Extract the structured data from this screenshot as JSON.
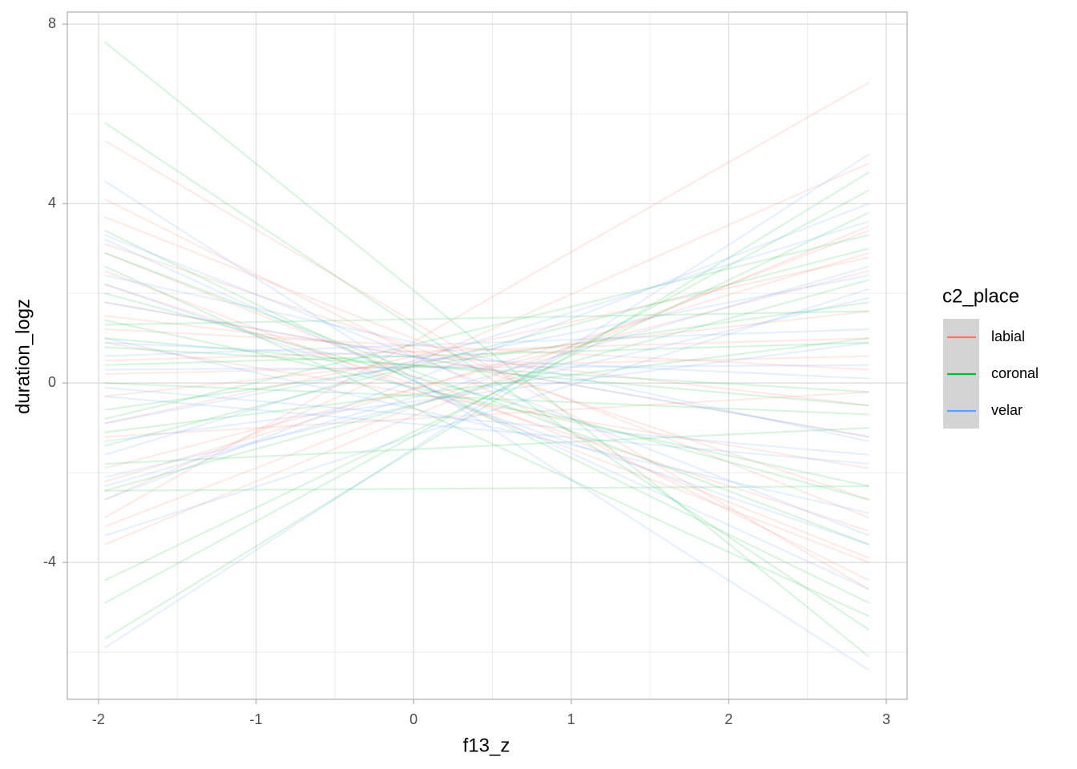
{
  "chart_data": {
    "type": "line",
    "x_label": "f13_z",
    "y_label": "duration_logz",
    "legend_title": "c2_place",
    "legend": "right",
    "xlim": [
      -2.198,
      3.132
    ],
    "ylim": [
      -7.05,
      8.27
    ],
    "xticks": [
      -2,
      -1,
      0,
      1,
      2,
      3
    ],
    "yticks": [
      -4,
      0,
      4,
      8
    ],
    "xminor": [
      -1.5,
      -0.5,
      0.5,
      1.5,
      2.5
    ],
    "yminor": [
      -6,
      -2,
      2,
      6
    ],
    "grid": true,
    "line_opacity": 0.15,
    "x": [
      -1.96,
      2.89
    ],
    "groups": [
      {
        "name": "labial",
        "color": "#F8766D",
        "lines": [
          [
            2.9,
            -3.9
          ],
          [
            4.1,
            -4.4
          ],
          [
            5.4,
            -4.6
          ],
          [
            -3.0,
            6.7
          ],
          [
            -3.6,
            3.5
          ],
          [
            1.8,
            -1.2
          ],
          [
            -0.9,
            2.8
          ],
          [
            3.1,
            -2.6
          ],
          [
            0.5,
            1.0
          ],
          [
            -1.9,
            2.5
          ],
          [
            2.2,
            -3.3
          ],
          [
            -2.6,
            4.9
          ],
          [
            1.2,
            0.3
          ],
          [
            -0.3,
            1.6
          ],
          [
            3.7,
            -3.0
          ],
          [
            -1.2,
            -0.2
          ],
          [
            0.9,
            -1.9
          ],
          [
            -2.2,
            2.9
          ],
          [
            2.5,
            -4.0
          ],
          [
            0.2,
            0.6
          ],
          [
            1.5,
            -0.5
          ],
          [
            -3.2,
            3.4
          ]
        ]
      },
      {
        "name": "coronal",
        "color": "#00BA38",
        "lines": [
          [
            7.6,
            -6.1
          ],
          [
            5.8,
            -5.5
          ],
          [
            -5.7,
            4.7
          ],
          [
            -4.9,
            4.3
          ],
          [
            -4.4,
            3.8
          ],
          [
            1.4,
            -2.3
          ],
          [
            -1.4,
            3.0
          ],
          [
            3.4,
            -4.9
          ],
          [
            0.4,
            0.9
          ],
          [
            -0.6,
            1.8
          ],
          [
            2.0,
            -2.6
          ],
          [
            -2.4,
            2.3
          ],
          [
            1.0,
            -0.5
          ],
          [
            -1.8,
            -1.0
          ],
          [
            2.6,
            -5.2
          ],
          [
            0.0,
            -0.7
          ],
          [
            -2.4,
            -2.3
          ],
          [
            1.3,
            1.6
          ],
          [
            -0.8,
            3.3
          ],
          [
            2.9,
            -3.6
          ],
          [
            0.8,
            -0.2
          ],
          [
            -1.1,
            1.0
          ]
        ]
      },
      {
        "name": "velar",
        "color": "#619CFF",
        "lines": [
          [
            4.5,
            -6.4
          ],
          [
            -5.9,
            5.1
          ],
          [
            3.3,
            -3.4
          ],
          [
            -2.3,
            2.6
          ],
          [
            -1.6,
            3.6
          ],
          [
            2.4,
            -1.3
          ],
          [
            0.6,
            1.2
          ],
          [
            -3.4,
            2.1
          ],
          [
            1.0,
            -2.9
          ],
          [
            -0.3,
            -1.8
          ],
          [
            3.2,
            -4.6
          ],
          [
            -2.6,
            4.0
          ],
          [
            0.9,
            0.1
          ],
          [
            -1.3,
            0.9
          ],
          [
            1.8,
            -1.2
          ],
          [
            -0.1,
            -1.6
          ],
          [
            -2.1,
            1.9
          ],
          [
            2.2,
            -3.6
          ],
          [
            0.3,
            0.4
          ],
          [
            -0.9,
            2.4
          ]
        ]
      }
    ]
  }
}
